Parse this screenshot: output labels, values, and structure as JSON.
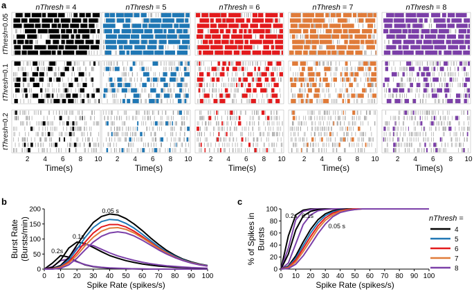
{
  "panel_labels": {
    "a": "a",
    "b": "b",
    "c": "c"
  },
  "panel_a": {
    "column_header_var": "nThresh",
    "columns": [
      "= 4",
      "= 5",
      "= 6",
      "= 7",
      "= 8"
    ],
    "row_var": "tThresh",
    "rows": [
      "=0.05",
      "=0.1",
      "=0.2"
    ],
    "x_ticks": [
      "2",
      "4",
      "6",
      "8",
      "10"
    ],
    "x_label": "Time(s)"
  },
  "colors": {
    "4": "#000000",
    "5": "#1f77b4",
    "6": "#e31a1c",
    "7": "#e07b39",
    "8": "#7b3fa8"
  },
  "chart_data": [
    {
      "type": "line",
      "panel": "b",
      "xlabel": "Spike Rate (spikes/s)",
      "ylabel_line1": "Burst Rate",
      "ylabel_line2": "(Bursts/min)",
      "xlim": [
        0,
        100
      ],
      "ylim": [
        0,
        200
      ],
      "xticks": [
        "0",
        "10",
        "20",
        "30",
        "40",
        "50",
        "60",
        "70",
        "80",
        "90",
        "100"
      ],
      "yticks": [
        "0",
        "50",
        "100",
        "150",
        "200"
      ],
      "annotations": [
        "0.05 s",
        "0.1s",
        "0.2s"
      ],
      "x": [
        0,
        5,
        10,
        15,
        20,
        25,
        30,
        35,
        40,
        45,
        50,
        55,
        60,
        65,
        70,
        75,
        80,
        85,
        90,
        95,
        100
      ],
      "series": [
        {
          "name": "4",
          "tThresh": "0.2",
          "values": [
            0,
            20,
            45,
            40,
            25,
            14,
            8,
            5,
            3,
            2,
            1,
            1,
            0,
            0,
            0,
            0,
            0,
            0,
            0,
            0,
            0
          ]
        },
        {
          "name": "8",
          "tThresh": "0.2",
          "values": [
            0,
            8,
            28,
            34,
            24,
            15,
            9,
            6,
            4,
            3,
            2,
            1,
            1,
            0,
            0,
            0,
            0,
            0,
            0,
            0,
            0
          ]
        },
        {
          "name": "4",
          "tThresh": "0.1",
          "values": [
            0,
            6,
            30,
            70,
            90,
            85,
            72,
            58,
            45,
            36,
            28,
            22,
            17,
            13,
            10,
            8,
            6,
            5,
            4,
            3,
            2
          ]
        },
        {
          "name": "8",
          "tThresh": "0.1",
          "values": [
            0,
            2,
            12,
            40,
            70,
            82,
            78,
            66,
            54,
            44,
            36,
            29,
            23,
            18,
            14,
            11,
            9,
            7,
            5,
            4,
            3
          ]
        },
        {
          "name": "4",
          "tThresh": "0.05",
          "values": [
            0,
            2,
            12,
            38,
            80,
            120,
            155,
            175,
            183,
            180,
            168,
            150,
            128,
            104,
            82,
            62,
            46,
            33,
            24,
            17,
            12
          ]
        },
        {
          "name": "5",
          "tThresh": "0.05",
          "values": [
            0,
            1,
            9,
            30,
            66,
            105,
            138,
            158,
            165,
            163,
            152,
            136,
            116,
            95,
            75,
            57,
            43,
            31,
            22,
            16,
            11
          ]
        },
        {
          "name": "6",
          "tThresh": "0.05",
          "values": [
            0,
            1,
            7,
            24,
            55,
            90,
            120,
            140,
            148,
            148,
            140,
            126,
            108,
            89,
            70,
            54,
            40,
            29,
            21,
            15,
            10
          ]
        },
        {
          "name": "7",
          "tThresh": "0.05",
          "values": [
            0,
            1,
            5,
            20,
            46,
            78,
            106,
            126,
            136,
            138,
            132,
            120,
            104,
            86,
            68,
            53,
            39,
            29,
            21,
            15,
            10
          ]
        },
        {
          "name": "8",
          "tThresh": "0.05",
          "values": [
            0,
            0,
            3,
            14,
            36,
            64,
            90,
            109,
            120,
            124,
            120,
            110,
            96,
            80,
            64,
            50,
            38,
            28,
            20,
            14,
            10
          ]
        }
      ]
    },
    {
      "type": "line",
      "panel": "c",
      "xlabel": "Spike Rate (spikes/s)",
      "ylabel_line1": "% of Spikes in",
      "ylabel_line2": "Bursts",
      "xlim": [
        0,
        100
      ],
      "ylim": [
        0,
        100
      ],
      "xticks": [
        "0",
        "10",
        "20",
        "30",
        "40",
        "50",
        "60",
        "70",
        "80",
        "90",
        "100"
      ],
      "yticks": [
        "0",
        "20",
        "40",
        "60",
        "80",
        "100"
      ],
      "annotations": [
        "0.2s",
        "0.1s",
        "0.05 s"
      ],
      "legend_title": "nThresh =",
      "legend_entries": [
        "4",
        "5",
        "6",
        "7",
        "8"
      ],
      "x": [
        0,
        5,
        10,
        15,
        20,
        25,
        30,
        35,
        40,
        45,
        50,
        55,
        60,
        65,
        70,
        75,
        80,
        85,
        90,
        95,
        100
      ],
      "series": [
        {
          "name": "4",
          "tThresh": "0.2",
          "values": [
            0,
            55,
            90,
            98,
            100,
            100,
            100,
            100,
            100,
            100,
            100,
            100,
            100,
            100,
            100,
            100,
            100,
            100,
            100,
            100,
            100
          ]
        },
        {
          "name": "8",
          "tThresh": "0.2",
          "values": [
            0,
            35,
            82,
            96,
            99,
            100,
            100,
            100,
            100,
            100,
            100,
            100,
            100,
            100,
            100,
            100,
            100,
            100,
            100,
            100,
            100
          ]
        },
        {
          "name": "4",
          "tThresh": "0.1",
          "values": [
            0,
            25,
            65,
            88,
            96,
            99,
            100,
            100,
            100,
            100,
            100,
            100,
            100,
            100,
            100,
            100,
            100,
            100,
            100,
            100,
            100
          ]
        },
        {
          "name": "8",
          "tThresh": "0.1",
          "values": [
            0,
            10,
            42,
            74,
            90,
            97,
            99,
            100,
            100,
            100,
            100,
            100,
            100,
            100,
            100,
            100,
            100,
            100,
            100,
            100,
            100
          ]
        },
        {
          "name": "4",
          "tThresh": "0.05",
          "values": [
            0,
            5,
            22,
            45,
            66,
            82,
            92,
            97,
            99,
            100,
            100,
            100,
            100,
            100,
            100,
            100,
            100,
            100,
            100,
            100,
            100
          ]
        },
        {
          "name": "5",
          "tThresh": "0.05",
          "values": [
            0,
            4,
            18,
            39,
            60,
            77,
            89,
            95,
            98,
            99,
            100,
            100,
            100,
            100,
            100,
            100,
            100,
            100,
            100,
            100,
            100
          ]
        },
        {
          "name": "6",
          "tThresh": "0.05",
          "values": [
            0,
            3,
            15,
            34,
            54,
            72,
            85,
            93,
            97,
            99,
            100,
            100,
            100,
            100,
            100,
            100,
            100,
            100,
            100,
            100,
            100
          ]
        },
        {
          "name": "7",
          "tThresh": "0.05",
          "values": [
            0,
            2,
            12,
            29,
            48,
            67,
            81,
            90,
            96,
            98,
            99,
            100,
            100,
            100,
            100,
            100,
            100,
            100,
            100,
            100,
            100
          ]
        },
        {
          "name": "8",
          "tThresh": "0.05",
          "values": [
            0,
            1,
            8,
            22,
            40,
            59,
            75,
            87,
            94,
            97,
            99,
            100,
            100,
            100,
            100,
            100,
            100,
            100,
            100,
            100,
            100
          ]
        }
      ]
    }
  ]
}
